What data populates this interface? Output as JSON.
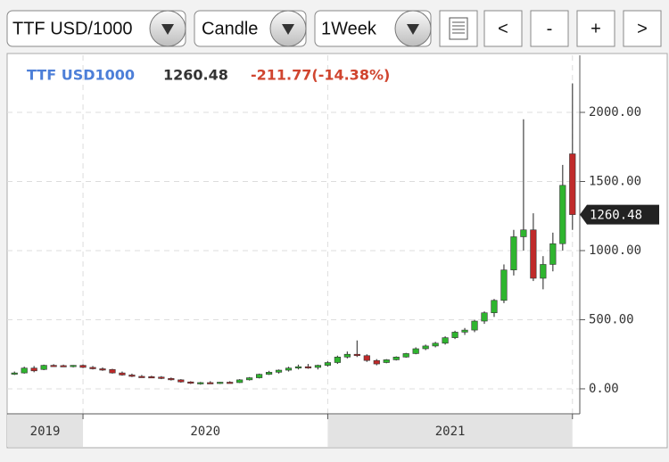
{
  "toolbar": {
    "symbol": "TTF USD/1000",
    "chart_style": "Candle",
    "interval": "1Week",
    "buttons": [
      "<",
      "-",
      "+",
      ">"
    ]
  },
  "chart_data": {
    "type": "candlestick",
    "symbol": "TTF USD1000",
    "last": 1260.48,
    "change_label": "-211.77(-14.38%)",
    "x": [
      2019.72,
      2019.76,
      2019.8,
      2019.84,
      2019.88,
      2019.92,
      2019.96,
      2020.0,
      2020.04,
      2020.08,
      2020.12,
      2020.16,
      2020.2,
      2020.24,
      2020.28,
      2020.32,
      2020.36,
      2020.4,
      2020.44,
      2020.48,
      2020.52,
      2020.56,
      2020.6,
      2020.64,
      2020.68,
      2020.72,
      2020.76,
      2020.8,
      2020.84,
      2020.88,
      2020.92,
      2020.96,
      2021.0,
      2021.04,
      2021.08,
      2021.12,
      2021.16,
      2021.2,
      2021.24,
      2021.28,
      2021.32,
      2021.36,
      2021.4,
      2021.44,
      2021.48,
      2021.52,
      2021.56,
      2021.6,
      2021.64,
      2021.68,
      2021.72,
      2021.76,
      2021.8,
      2021.84,
      2021.88,
      2021.92,
      2021.96,
      2022.0
    ],
    "open": [
      110,
      115,
      150,
      140,
      170,
      168,
      165,
      170,
      155,
      145,
      140,
      115,
      100,
      90,
      88,
      85,
      75,
      65,
      50,
      40,
      45,
      42,
      48,
      45,
      65,
      80,
      105,
      120,
      135,
      150,
      160,
      155,
      170,
      190,
      230,
      250,
      240,
      205,
      190,
      210,
      230,
      255,
      290,
      310,
      330,
      370,
      410,
      425,
      490,
      550,
      640,
      860,
      1100,
      1150,
      800,
      900,
      1050,
      1700
    ],
    "high": [
      125,
      160,
      165,
      175,
      178,
      175,
      172,
      176,
      165,
      155,
      145,
      125,
      110,
      100,
      95,
      92,
      82,
      70,
      55,
      50,
      55,
      50,
      55,
      70,
      85,
      110,
      130,
      140,
      160,
      175,
      180,
      175,
      200,
      240,
      270,
      350,
      250,
      215,
      215,
      235,
      260,
      300,
      320,
      340,
      380,
      420,
      440,
      500,
      560,
      650,
      900,
      1150,
      1950,
      1270,
      960,
      1130,
      1620,
      2210
    ],
    "low": [
      100,
      110,
      120,
      135,
      160,
      158,
      155,
      150,
      140,
      130,
      110,
      95,
      85,
      80,
      78,
      70,
      60,
      45,
      35,
      30,
      38,
      35,
      40,
      42,
      60,
      75,
      100,
      110,
      125,
      140,
      145,
      140,
      160,
      180,
      220,
      230,
      195,
      170,
      185,
      205,
      225,
      250,
      280,
      300,
      320,
      360,
      390,
      410,
      470,
      520,
      620,
      820,
      1000,
      780,
      720,
      850,
      1000,
      1150
    ],
    "close": [
      115,
      150,
      130,
      170,
      168,
      165,
      170,
      155,
      145,
      140,
      115,
      100,
      90,
      88,
      85,
      75,
      65,
      50,
      40,
      45,
      42,
      48,
      45,
      65,
      80,
      105,
      120,
      135,
      150,
      160,
      155,
      170,
      190,
      230,
      250,
      240,
      205,
      180,
      210,
      230,
      255,
      290,
      310,
      330,
      370,
      410,
      425,
      490,
      550,
      640,
      860,
      1100,
      1150,
      800,
      900,
      1050,
      1472.25,
      1260.48
    ],
    "up_color": "#2fb52f",
    "down_color": "#c02a2a",
    "xlim": [
      2019.69,
      2022.03
    ],
    "xticks": [
      2020,
      2021,
      2022
    ],
    "periods": [
      "2019",
      "2020",
      "2021"
    ],
    "ylim": [
      -181,
      2413
    ],
    "yticks": [
      {
        "value": 0,
        "label": "0.00"
      },
      {
        "value": 500,
        "label": "500.00"
      },
      {
        "value": 1000,
        "label": "1000.00"
      },
      {
        "value": 1500,
        "label": "1500.00"
      },
      {
        "value": 2000,
        "label": "2000.00"
      }
    ],
    "grid": true
  }
}
